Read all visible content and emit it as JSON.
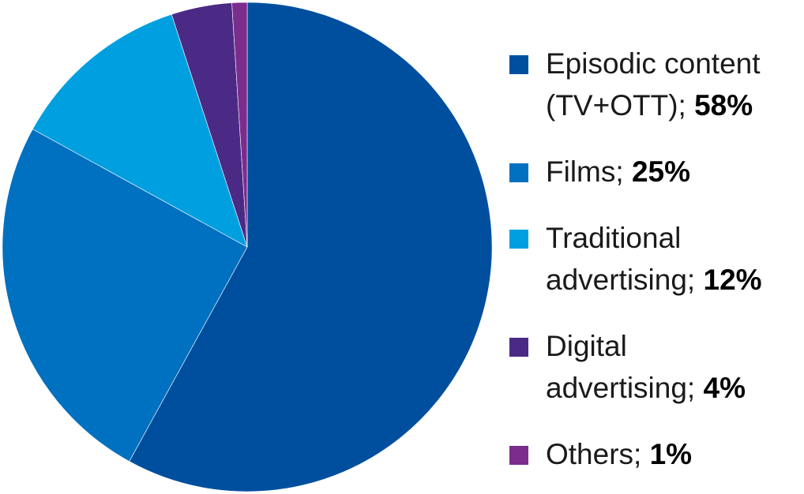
{
  "chart_data": {
    "type": "pie",
    "start_angle_deg": 0,
    "direction": "clockwise",
    "slices": [
      {
        "label": "Episodic content (TV+OTT)",
        "value_label": "58%",
        "value": 58,
        "color": "#004f9f"
      },
      {
        "label": "Films",
        "value_label": "25%",
        "value": 25,
        "color": "#0070c0"
      },
      {
        "label": "Traditional advertising",
        "value_label": "12%",
        "value": 12,
        "color": "#00a0e0"
      },
      {
        "label": "Digital advertising",
        "value_label": "4%",
        "value": 4,
        "color": "#4b2a86"
      },
      {
        "label": "Others",
        "value_label": "1%",
        "value": 1,
        "color": "#7b2d8e"
      }
    ],
    "legend_position": "right",
    "legend": [
      {
        "lines": [
          "Episodic content",
          "(TV+OTT); "
        ],
        "value_label": "58%",
        "color": "#004f9f"
      },
      {
        "lines": [
          "Films; "
        ],
        "value_label": "25%",
        "color": "#0070c0"
      },
      {
        "lines": [
          "Traditional",
          "advertising; "
        ],
        "value_label": "12%",
        "color": "#00a0e0"
      },
      {
        "lines": [
          "Digital",
          "advertising; "
        ],
        "value_label": "4%",
        "color": "#4b2a86"
      },
      {
        "lines": [
          "Others; "
        ],
        "value_label": "1%",
        "color": "#7b2d8e"
      }
    ]
  }
}
